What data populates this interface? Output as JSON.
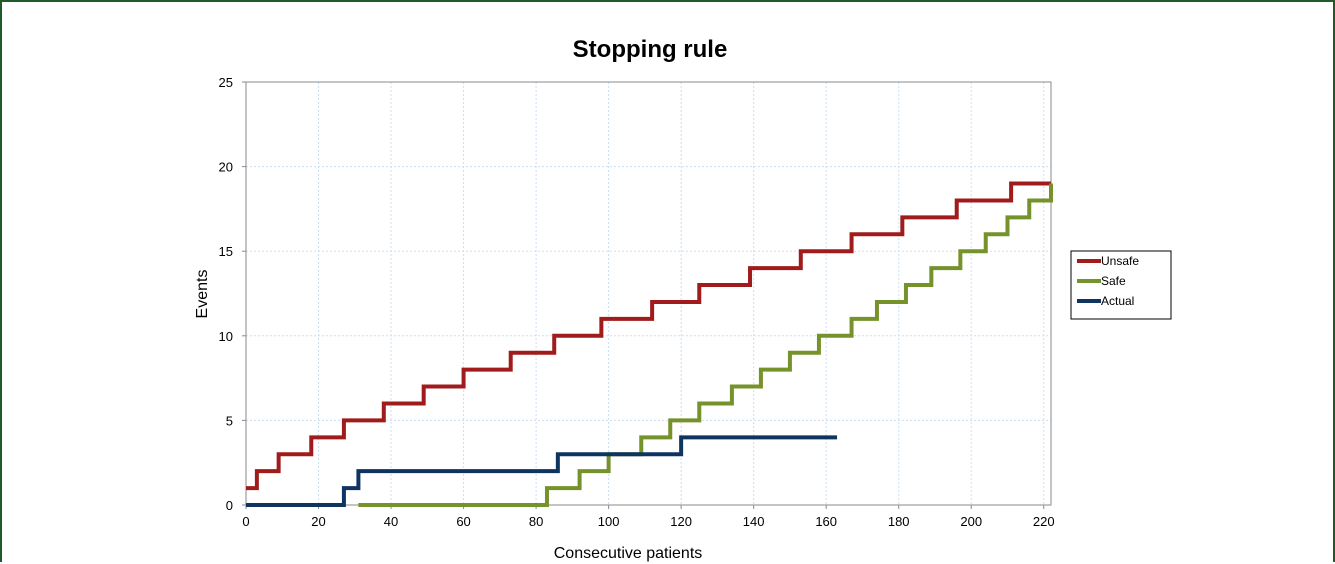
{
  "chart_data": {
    "type": "line",
    "step": true,
    "title": "Stopping rule",
    "xlabel": "Consecutive patients",
    "ylabel": "Events",
    "xlim": [
      0,
      222
    ],
    "ylim": [
      0,
      25
    ],
    "xticks": [
      0,
      20,
      40,
      60,
      80,
      100,
      120,
      140,
      160,
      180,
      200,
      220
    ],
    "yticks": [
      0,
      5,
      10,
      15,
      20,
      25
    ],
    "grid": true,
    "legend_position": "right",
    "series": [
      {
        "name": "Unsafe",
        "color": "#a01c1c",
        "x": [
          0,
          3,
          9,
          18,
          27,
          38,
          49,
          60,
          73,
          85,
          98,
          112,
          125,
          139,
          153,
          167,
          181,
          196,
          211,
          222
        ],
        "y": [
          1,
          2,
          3,
          4,
          5,
          6,
          7,
          8,
          9,
          10,
          11,
          12,
          13,
          14,
          15,
          16,
          17,
          18,
          19,
          19
        ]
      },
      {
        "name": "Safe",
        "color": "#76922a",
        "x": [
          31,
          83,
          92,
          100,
          109,
          117,
          125,
          134,
          142,
          150,
          158,
          167,
          174,
          182,
          189,
          197,
          204,
          210,
          216,
          222
        ],
        "y": [
          0,
          1,
          2,
          3,
          4,
          5,
          6,
          7,
          8,
          9,
          10,
          11,
          12,
          13,
          14,
          15,
          16,
          17,
          18,
          19
        ]
      },
      {
        "name": "Actual",
        "color": "#0f3460",
        "x": [
          0,
          27,
          31,
          86,
          120,
          163
        ],
        "y": [
          0,
          1,
          2,
          3,
          4,
          4
        ]
      }
    ]
  }
}
